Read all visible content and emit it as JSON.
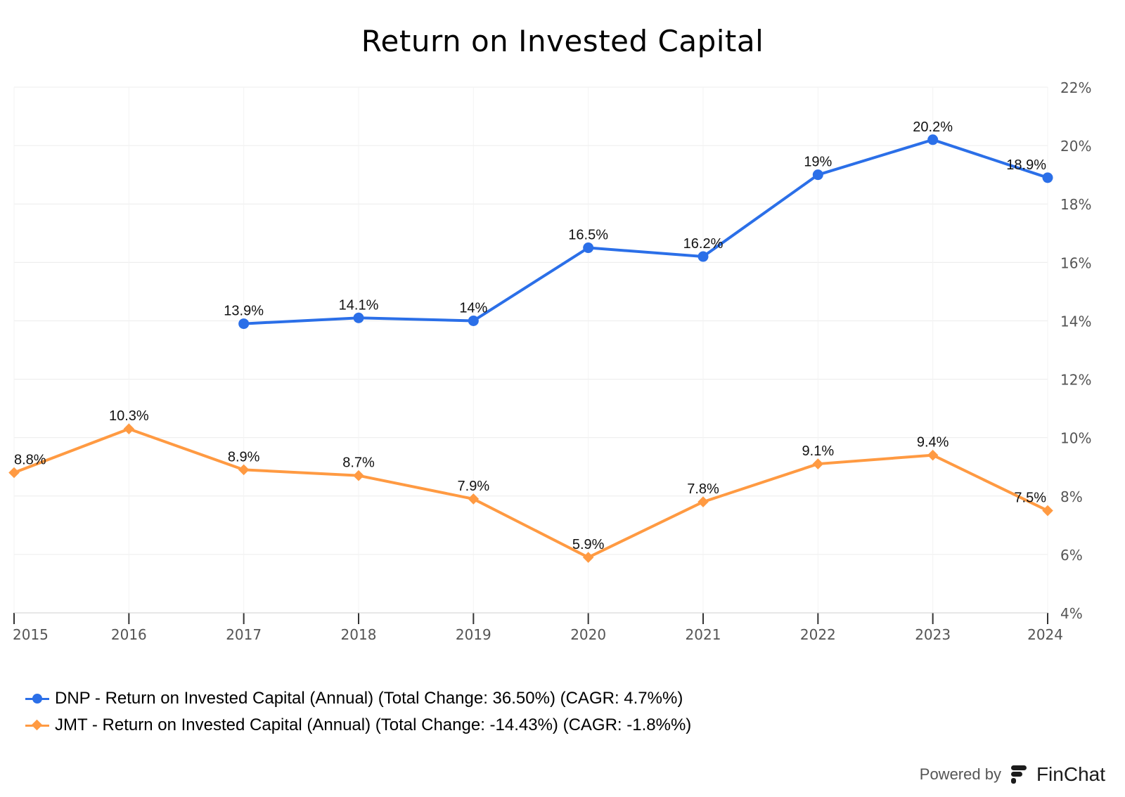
{
  "chart_data": {
    "type": "line",
    "title": "Return on Invested Capital",
    "categories": [
      "2015",
      "2016",
      "2017",
      "2018",
      "2019",
      "2020",
      "2021",
      "2022",
      "2023",
      "2024"
    ],
    "y_ticks": [
      "4%",
      "6%",
      "8%",
      "10%",
      "12%",
      "14%",
      "16%",
      "18%",
      "20%",
      "22%"
    ],
    "ylim": [
      4,
      22
    ],
    "y_axis_position": "right",
    "grid": true,
    "legend_position": "bottom-left",
    "series": [
      {
        "name": "DNP - Return on Invested Capital (Annual) (Total Change: 36.50%) (CAGR: 4.7%%)",
        "color": "#2B6FE8",
        "marker": "circle",
        "values": [
          null,
          null,
          13.9,
          14.1,
          14,
          16.5,
          16.2,
          19,
          20.2,
          18.9
        ],
        "labels": [
          null,
          null,
          "13.9%",
          "14.1%",
          "14%",
          "16.5%",
          "16.2%",
          "19%",
          "20.2%",
          "18.9%"
        ]
      },
      {
        "name": "JMT - Return on Invested Capital (Annual) (Total Change: -14.43%) (CAGR: -1.8%%)",
        "color": "#FF9A42",
        "marker": "diamond",
        "values": [
          8.8,
          10.3,
          8.9,
          8.7,
          7.9,
          5.9,
          7.8,
          9.1,
          9.4,
          7.5
        ],
        "labels": [
          "8.8%",
          "10.3%",
          "8.9%",
          "8.7%",
          "7.9%",
          "5.9%",
          "7.8%",
          "9.1%",
          "9.4%",
          "7.5%"
        ]
      }
    ]
  },
  "footer": {
    "powered_by": "Powered by",
    "brand": "FinChat"
  }
}
